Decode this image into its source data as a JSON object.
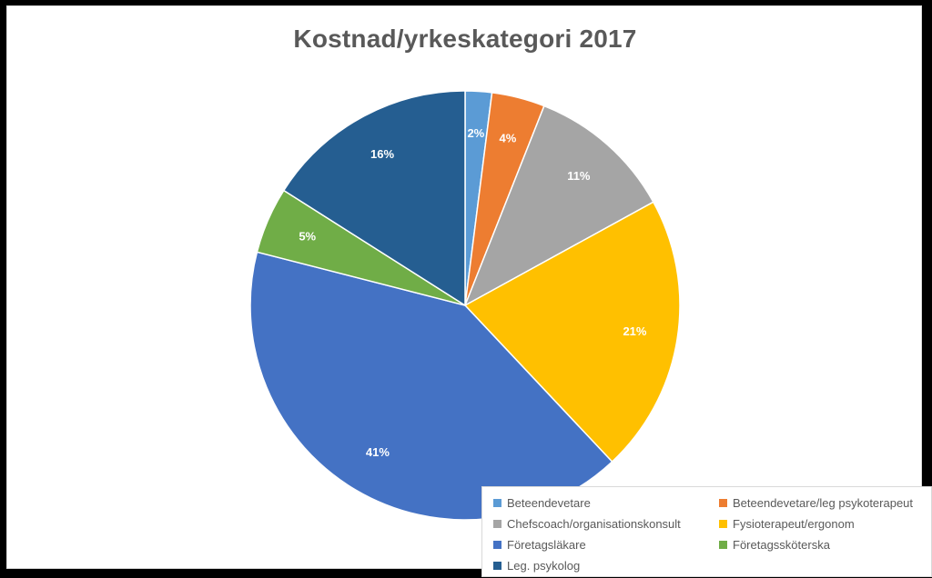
{
  "chart_data": {
    "type": "pie",
    "title": "Kostnad/yrkeskategori  2017",
    "categories": [
      "Beteendevetare",
      "Beteendevetare/leg psykoterapeut",
      "Chefscoach/organisationskonsult",
      "Fysioterapeut/ergonom",
      "Företagsläkare",
      "Företagssköterska",
      "Leg. psykolog"
    ],
    "values": [
      2,
      4,
      11,
      21,
      41,
      5,
      16
    ],
    "labels": [
      "2%",
      "4%",
      "11%",
      "21%",
      "41%",
      "5%",
      "16%"
    ],
    "colors": [
      "#5b9bd5",
      "#ed7d31",
      "#a5a5a5",
      "#ffc000",
      "#4472c4",
      "#70ad47",
      "#255e91"
    ],
    "legend_position": "bottom-right"
  }
}
